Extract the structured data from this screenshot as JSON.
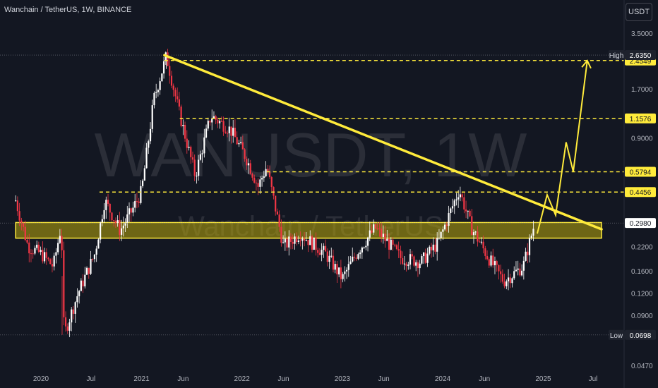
{
  "header": {
    "symbol_title": "Wanchain / TetherUS, 1W, BINANCE",
    "currency_button": "USDT"
  },
  "watermark": {
    "symbol": "WANUSDT, 1W",
    "name": "Wanchain / TetherUS"
  },
  "colors": {
    "background": "#131722",
    "candle_up": "#ffffff",
    "candle_down": "#f23645",
    "annotation": "#ffeb3b",
    "zone_fill": "#b9a80b",
    "axis_text": "#b2b5be"
  },
  "chart_data": {
    "type": "candlestick",
    "title": "Wanchain / TetherUS, 1W, BINANCE",
    "y_scale": "log",
    "ylim": [
      0.047,
      3.5
    ],
    "y_ticks": [
      {
        "label": "3.5000",
        "value": 3.5
      },
      {
        "label": "1.7000",
        "value": 1.7
      },
      {
        "label": "0.9000",
        "value": 0.9
      },
      {
        "label": "0.2200",
        "value": 0.22
      },
      {
        "label": "0.1600",
        "value": 0.16
      },
      {
        "label": "0.1200",
        "value": 0.12
      },
      {
        "label": "0.0900",
        "value": 0.09
      },
      {
        "label": "0.0470",
        "value": 0.047
      }
    ],
    "x_ticks": [
      {
        "label": "2020",
        "date": "2020-01-01"
      },
      {
        "label": "Jul",
        "date": "2020-07-01"
      },
      {
        "label": "2021",
        "date": "2021-01-01"
      },
      {
        "label": "Jun",
        "date": "2021-06-01"
      },
      {
        "label": "2022",
        "date": "2022-01-01"
      },
      {
        "label": "Jun",
        "date": "2022-06-01"
      },
      {
        "label": "2023",
        "date": "2023-01-01"
      },
      {
        "label": "Jun",
        "date": "2023-06-01"
      },
      {
        "label": "2024",
        "date": "2024-01-01"
      },
      {
        "label": "Jun",
        "date": "2024-06-01"
      },
      {
        "label": "2025",
        "date": "2025-01-01"
      },
      {
        "label": "Jul",
        "date": "2025-07-01"
      }
    ],
    "price_path": [
      {
        "date": "2019-10-01",
        "price": 0.4
      },
      {
        "date": "2019-11-15",
        "price": 0.22
      },
      {
        "date": "2020-01-01",
        "price": 0.2
      },
      {
        "date": "2020-02-15",
        "price": 0.17
      },
      {
        "date": "2020-03-15",
        "price": 0.29
      },
      {
        "date": "2020-03-25",
        "price": 0.07
      },
      {
        "date": "2020-05-15",
        "price": 0.12
      },
      {
        "date": "2020-07-15",
        "price": 0.2
      },
      {
        "date": "2020-08-20",
        "price": 0.4
      },
      {
        "date": "2020-10-15",
        "price": 0.27
      },
      {
        "date": "2020-12-01",
        "price": 0.36
      },
      {
        "date": "2021-01-01",
        "price": 0.45
      },
      {
        "date": "2021-02-15",
        "price": 1.5
      },
      {
        "date": "2021-04-01",
        "price": 2.6
      },
      {
        "date": "2021-05-15",
        "price": 1.3
      },
      {
        "date": "2021-07-15",
        "price": 0.55
      },
      {
        "date": "2021-09-10",
        "price": 1.2
      },
      {
        "date": "2021-11-20",
        "price": 1.0
      },
      {
        "date": "2022-01-15",
        "price": 0.7
      },
      {
        "date": "2022-03-01",
        "price": 0.48
      },
      {
        "date": "2022-04-01",
        "price": 0.62
      },
      {
        "date": "2022-06-01",
        "price": 0.22
      },
      {
        "date": "2022-08-01",
        "price": 0.26
      },
      {
        "date": "2022-11-01",
        "price": 0.2
      },
      {
        "date": "2023-01-01",
        "price": 0.145
      },
      {
        "date": "2023-03-01",
        "price": 0.21
      },
      {
        "date": "2023-05-01",
        "price": 0.28
      },
      {
        "date": "2023-08-01",
        "price": 0.19
      },
      {
        "date": "2023-10-15",
        "price": 0.18
      },
      {
        "date": "2023-12-15",
        "price": 0.23
      },
      {
        "date": "2024-03-01",
        "price": 0.46
      },
      {
        "date": "2024-04-15",
        "price": 0.28
      },
      {
        "date": "2024-06-15",
        "price": 0.19
      },
      {
        "date": "2024-08-10",
        "price": 0.14
      },
      {
        "date": "2024-10-20",
        "price": 0.17
      },
      {
        "date": "2024-12-01",
        "price": 0.3
      }
    ],
    "high_marker": {
      "label": "High",
      "value_label": "2.6350",
      "value": 2.635
    },
    "low_marker": {
      "label": "Low",
      "value_label": "0.0698",
      "value": 0.0698
    },
    "levels": [
      {
        "label": "2.4549",
        "value": 2.4549
      },
      {
        "label": "1.1576",
        "value": 1.1576
      },
      {
        "label": "0.5794",
        "value": 0.5794
      },
      {
        "label": "0.4456",
        "value": 0.4456
      }
    ],
    "current_price": {
      "label": "0.2980",
      "value": 0.298
    },
    "support_zone": {
      "low": 0.245,
      "high": 0.3,
      "from": "2019-10-01",
      "to": "2025-08-01"
    },
    "trendline": {
      "from": {
        "date": "2021-03-25",
        "price": 2.63
      },
      "to": {
        "date": "2025-08-01",
        "price": 0.275
      }
    },
    "projection": [
      {
        "date": "2024-12-10",
        "price": 0.26
      },
      {
        "date": "2025-01-15",
        "price": 0.43
      },
      {
        "date": "2025-02-15",
        "price": 0.33
      },
      {
        "date": "2025-03-25",
        "price": 0.85
      },
      {
        "date": "2025-04-20",
        "price": 0.58
      },
      {
        "date": "2025-06-10",
        "price": 2.45
      }
    ],
    "grid": false,
    "legend": "none"
  }
}
